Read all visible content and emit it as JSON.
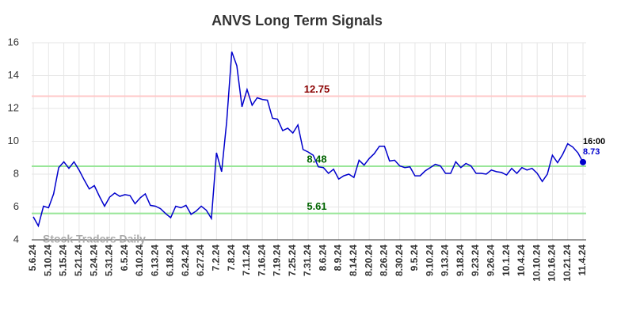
{
  "chart_data": {
    "type": "line",
    "title": "ANVS Long Term Signals",
    "categories": [
      "5.6.24",
      null,
      null,
      "5.10.24",
      null,
      null,
      "5.15.24",
      null,
      null,
      "5.21.24",
      null,
      null,
      "5.24.24",
      null,
      null,
      "5.31.24",
      null,
      null,
      "6.5.24",
      null,
      null,
      "6.10.24",
      null,
      null,
      "6.13.24",
      null,
      null,
      "6.18.24",
      null,
      null,
      "6.24.24",
      null,
      null,
      "6.27.24",
      null,
      null,
      "7.2.24",
      null,
      null,
      "7.8.24",
      null,
      null,
      "7.11.24",
      null,
      null,
      "7.16.24",
      null,
      null,
      "7.19.24",
      null,
      null,
      "7.25.24",
      null,
      null,
      "7.31.24",
      null,
      null,
      "8.6.24",
      null,
      null,
      "8.9.24",
      null,
      null,
      "8.14.24",
      null,
      null,
      "8.20.24",
      null,
      null,
      "8.26.24",
      null,
      null,
      "8.30.24",
      null,
      null,
      "9.5.24",
      null,
      null,
      "9.10.24",
      null,
      null,
      "9.13.24",
      null,
      null,
      "9.18.24",
      null,
      null,
      "9.23.24",
      null,
      null,
      "9.26.24",
      null,
      null,
      "10.1.24",
      null,
      null,
      "10.4.24",
      null,
      null,
      "10.10.24",
      null,
      null,
      "10.16.24",
      null,
      null,
      "10.21.24",
      null,
      null,
      "11.4.24"
    ],
    "values": [
      5.4,
      4.85,
      6.05,
      5.95,
      6.8,
      8.4,
      8.75,
      8.35,
      8.75,
      8.25,
      7.65,
      7.1,
      7.3,
      6.65,
      6.05,
      6.6,
      6.85,
      6.65,
      6.75,
      6.7,
      6.2,
      6.55,
      6.8,
      6.1,
      6.05,
      5.9,
      5.6,
      5.35,
      6.05,
      5.95,
      6.1,
      5.55,
      5.75,
      6.05,
      5.8,
      5.3,
      9.3,
      8.15,
      11.2,
      15.45,
      14.6,
      12.1,
      13.15,
      12.2,
      12.65,
      12.55,
      12.5,
      11.4,
      11.35,
      10.65,
      10.8,
      10.5,
      11.0,
      9.5,
      9.35,
      9.15,
      8.45,
      8.4,
      8.05,
      8.3,
      7.7,
      7.9,
      8.0,
      7.8,
      8.85,
      8.55,
      8.95,
      9.25,
      9.7,
      9.7,
      8.8,
      8.85,
      8.5,
      8.4,
      8.45,
      7.9,
      7.9,
      8.2,
      8.4,
      8.6,
      8.5,
      8.05,
      8.05,
      8.75,
      8.4,
      8.65,
      8.5,
      8.05,
      8.05,
      8.0,
      8.25,
      8.15,
      8.1,
      7.95,
      8.35,
      8.05,
      8.4,
      8.25,
      8.35,
      8.05,
      7.55,
      8.0,
      9.15,
      8.7,
      9.2,
      9.85,
      9.65,
      9.3,
      8.73
    ],
    "color": "#0000cc",
    "ylim": [
      4,
      16
    ],
    "yticks": [
      4,
      6,
      8,
      10,
      12,
      14,
      16
    ],
    "grid": true,
    "hlines": [
      {
        "value": 12.75,
        "color": "#ffc8c8",
        "label_color": "#8b0000"
      },
      {
        "value": 8.48,
        "color": "#99e699",
        "label_color": "#006400"
      },
      {
        "value": 5.61,
        "color": "#99e699",
        "label_color": "#006400"
      }
    ],
    "last_time": "16:00",
    "watermark": "Stock Traders Daily"
  }
}
